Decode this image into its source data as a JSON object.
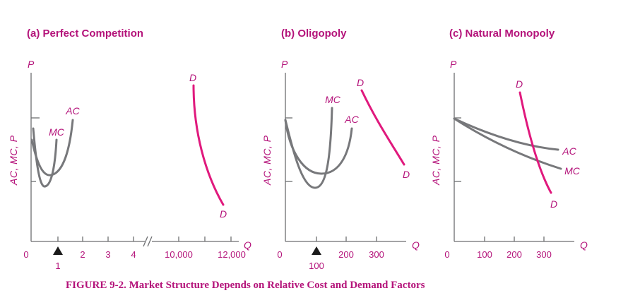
{
  "figure": {
    "caption": "FIGURE 9-2. Market Structure Depends on Relative Cost and Demand Factors",
    "colors": {
      "text": "#b4137a",
      "demand": "#e0197d",
      "cost": "#77787b",
      "axis": "#6d6e71"
    }
  },
  "panels": [
    {
      "title": "(a) Perfect Competition",
      "y_top_label": "P",
      "y_side_label": "AC, MC, P",
      "x_end_label": "Q",
      "origin_label": "0"
    },
    {
      "title": "(b) Oligopoly",
      "y_top_label": "P",
      "y_side_label": "AC, MC, P",
      "x_end_label": "Q",
      "origin_label": "0"
    },
    {
      "title": "(c) Natural Monopoly",
      "y_top_label": "P",
      "y_side_label": "AC, MC, P",
      "x_end_label": "Q",
      "origin_label": "0"
    }
  ],
  "chart_data": [
    {
      "type": "line",
      "title": "(a) Perfect Competition",
      "xlabel": "Q",
      "ylabel": "AC, MC, P",
      "x_ticks": [
        "1",
        "2",
        "3",
        "4",
        "10,000",
        "12,000"
      ],
      "axis_break": "between 4 and 10,000",
      "marker": {
        "x": "1",
        "shape": "triangle"
      },
      "series": [
        {
          "name": "MC",
          "x": [
            0.25,
            0.5,
            1.0
          ],
          "y": [
            45,
            38,
            68
          ]
        },
        {
          "name": "AC",
          "x": [
            0.2,
            0.7,
            1.7
          ],
          "y": [
            58,
            45,
            78
          ]
        },
        {
          "name": "D",
          "x": [
            11200,
            11400,
            11900
          ],
          "y": [
            95,
            55,
            25
          ]
        }
      ],
      "grid": false
    },
    {
      "type": "line",
      "title": "(b) Oligopoly",
      "xlabel": "Q",
      "ylabel": "AC, MC, P",
      "x_ticks": [
        "100",
        "200",
        "300"
      ],
      "marker": {
        "x": "100",
        "shape": "triangle"
      },
      "series": [
        {
          "name": "MC",
          "x": [
            0,
            100,
            160
          ],
          "y": [
            70,
            38,
            88
          ]
        },
        {
          "name": "AC",
          "x": [
            0,
            130,
            220
          ],
          "y": [
            80,
            44,
            71
          ]
        },
        {
          "name": "D",
          "x": [
            240,
            320,
            370
          ],
          "y": [
            95,
            65,
            42
          ]
        }
      ],
      "grid": false
    },
    {
      "type": "line",
      "title": "(c) Natural Monopoly",
      "xlabel": "Q",
      "ylabel": "AC, MC, P",
      "x_ticks": [
        "100",
        "200",
        "300"
      ],
      "series": [
        {
          "name": "AC",
          "x": [
            0,
            150,
            340
          ],
          "y": [
            70,
            63,
            60
          ]
        },
        {
          "name": "MC",
          "x": [
            0,
            150,
            340
          ],
          "y": [
            70,
            56,
            42
          ]
        },
        {
          "name": "D",
          "x": [
            220,
            270,
            310
          ],
          "y": [
            95,
            55,
            25
          ]
        }
      ],
      "grid": false
    }
  ]
}
